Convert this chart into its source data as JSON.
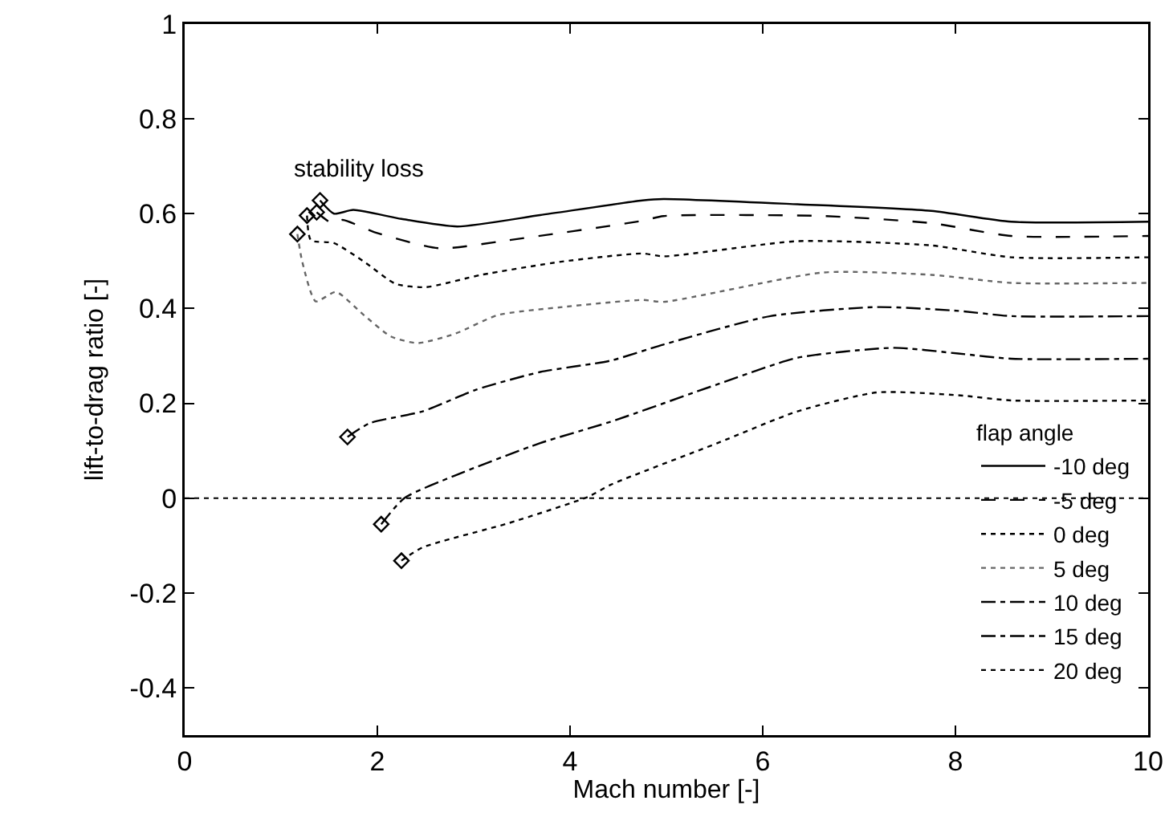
{
  "chart_data": {
    "type": "line",
    "xlabel": "Mach number [-]",
    "ylabel": "lift-to-drag ratio [-]",
    "legend_title": "flap angle",
    "legend": "bottom right",
    "xlim": [
      0,
      10
    ],
    "ylim": [
      -0.5,
      1
    ],
    "xticks": [
      0,
      2,
      4,
      6,
      8,
      10
    ],
    "yticks": [
      -0.4,
      -0.2,
      0,
      0.2,
      0.4,
      0.6,
      0.8,
      1
    ],
    "grid": false,
    "marker": "none",
    "annotations": [
      "stability loss"
    ],
    "ref_lines": [
      {
        "axis": "y",
        "value": 0,
        "color": "#000000",
        "line_style": "dotted"
      }
    ],
    "series": [
      {
        "name": "-10 deg",
        "color": "#000000",
        "line_style": "solid",
        "x": [
          1.405,
          1.55,
          1.75,
          2.25,
          2.83,
          3.69,
          4.75,
          4.97,
          6.36,
          7.75,
          8.58,
          10
        ],
        "values": [
          0.628,
          0.6,
          0.608,
          0.589,
          0.573,
          0.597,
          0.628,
          0.631,
          0.62,
          0.606,
          0.583,
          0.583
        ]
      },
      {
        "name": "-5 deg",
        "color": "#000000",
        "line_style": "dashed",
        "x": [
          1.37,
          1.53,
          1.64,
          1.97,
          2.64,
          3.36,
          4.75,
          4.97,
          6.64,
          7.75,
          8.58,
          10
        ],
        "values": [
          0.603,
          0.58,
          0.587,
          0.561,
          0.527,
          0.544,
          0.585,
          0.595,
          0.595,
          0.58,
          0.553,
          0.553
        ]
      },
      {
        "name": "0 deg",
        "color": "#000000",
        "line_style": "dotted",
        "x": [
          1.27,
          1.31,
          1.55,
          1.86,
          2.19,
          2.5,
          3.08,
          3.92,
          4.75,
          4.97,
          6.36,
          7.75,
          8.58,
          10
        ],
        "values": [
          0.596,
          0.544,
          0.538,
          0.499,
          0.452,
          0.445,
          0.471,
          0.499,
          0.516,
          0.51,
          0.542,
          0.533,
          0.508,
          0.508
        ]
      },
      {
        "name": "5 deg",
        "color": "#666666",
        "line_style": "dotted",
        "x": [
          1.17,
          1.22,
          1.36,
          1.57,
          1.86,
          2.14,
          2.42,
          2.81,
          3.25,
          3.92,
          4.75,
          4.97,
          6.63,
          7.75,
          8.58,
          10
        ],
        "values": [
          0.557,
          0.499,
          0.415,
          0.435,
          0.386,
          0.341,
          0.327,
          0.347,
          0.386,
          0.403,
          0.418,
          0.414,
          0.476,
          0.471,
          0.454,
          0.454
        ]
      },
      {
        "name": "10 deg",
        "color": "#000000",
        "line_style": "dashdot",
        "x": [
          1.69,
          1.92,
          2.47,
          3.03,
          3.69,
          4.42,
          4.97,
          6.08,
          7.19,
          8.03,
          8.58,
          10
        ],
        "values": [
          0.129,
          0.158,
          0.183,
          0.229,
          0.266,
          0.29,
          0.324,
          0.384,
          0.403,
          0.395,
          0.384,
          0.384
        ]
      },
      {
        "name": "15 deg",
        "color": "#000000",
        "line_style": "dashdot",
        "x": [
          2.04,
          2.28,
          2.81,
          3.69,
          4.42,
          5.53,
          6.36,
          7.36,
          8.03,
          8.58,
          10
        ],
        "values": [
          -0.055,
          0,
          0.048,
          0.116,
          0.161,
          0.24,
          0.296,
          0.317,
          0.305,
          0.294,
          0.294
        ]
      },
      {
        "name": "20 deg",
        "color": "#000000",
        "line_style": "dotted",
        "x": [
          2.25,
          2.47,
          3.36,
          4.19,
          4.42,
          5.53,
          6.36,
          7.19,
          8.03,
          8.58,
          10
        ],
        "values": [
          -0.132,
          -0.104,
          -0.053,
          0.003,
          0.028,
          0.116,
          0.183,
          0.223,
          0.217,
          0.206,
          0.206
        ]
      },
      {
        "type": "scatter",
        "marker": "diamond",
        "color": "#000000",
        "x": [
          1.405,
          1.37,
          1.27,
          1.17,
          1.69,
          2.04,
          2.25
        ],
        "values": [
          0.628,
          0.603,
          0.596,
          0.557,
          0.129,
          -0.055,
          -0.132
        ]
      }
    ]
  }
}
